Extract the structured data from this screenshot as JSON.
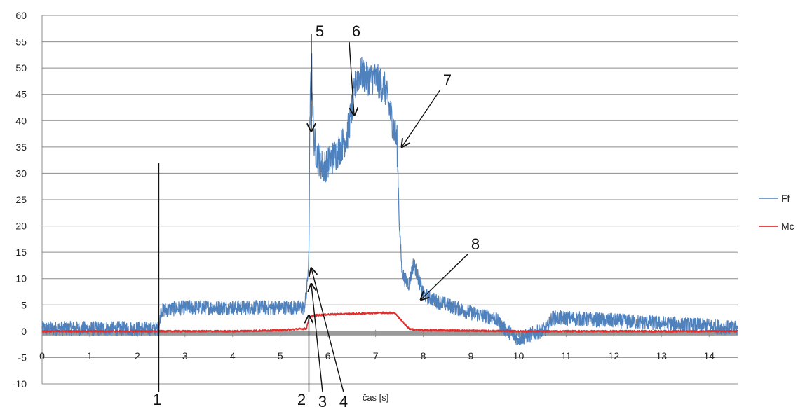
{
  "chart_data": {
    "type": "line",
    "title": "",
    "xlabel": "čas [s]",
    "ylabel": "",
    "xlim": [
      0,
      14.6
    ],
    "ylim": [
      -10,
      60
    ],
    "xticks": [
      0,
      1,
      2,
      3,
      4,
      5,
      6,
      7,
      8,
      9,
      10,
      11,
      12,
      13,
      14
    ],
    "yticks": [
      -10,
      -5,
      0,
      5,
      10,
      15,
      20,
      25,
      30,
      35,
      40,
      45,
      50,
      55,
      60
    ],
    "grid": "horizontal",
    "legend_position": "right",
    "series": [
      {
        "name": "Ff",
        "color": "#4f81bd",
        "x": [
          0,
          0.5,
          1.0,
          1.5,
          2.0,
          2.45,
          2.5,
          3.0,
          3.5,
          4.0,
          4.5,
          5.0,
          5.5,
          5.55,
          5.6,
          5.62,
          5.65,
          5.7,
          5.75,
          5.8,
          5.9,
          6.0,
          6.2,
          6.4,
          6.5,
          6.6,
          6.7,
          6.8,
          7.0,
          7.2,
          7.35,
          7.45,
          7.5,
          7.55,
          7.6,
          7.7,
          7.8,
          7.9,
          8.0,
          8.2,
          8.5,
          9.0,
          9.5,
          9.7,
          10.0,
          10.3,
          10.6,
          10.7,
          11.0,
          12.0,
          13.0,
          14.0,
          14.6
        ],
        "y": [
          0.5,
          0.5,
          0.5,
          0.5,
          0.5,
          0.5,
          4,
          4.5,
          4.5,
          4.5,
          4.5,
          4.5,
          4.5,
          7,
          14,
          38,
          53,
          37,
          34,
          33,
          31,
          32,
          34,
          37,
          42,
          48,
          49,
          48,
          48,
          46,
          40,
          36,
          20,
          12,
          10,
          9,
          13,
          10,
          7,
          6,
          5,
          3.5,
          2.5,
          0.5,
          -1.5,
          -0.5,
          0.5,
          2.5,
          2.5,
          2.0,
          1.5,
          1.0,
          0.5
        ]
      },
      {
        "name": "Mc",
        "color": "#e03030",
        "x": [
          0,
          2.0,
          3.0,
          4.0,
          5.0,
          5.55,
          5.6,
          5.7,
          6.0,
          6.5,
          7.0,
          7.4,
          7.55,
          7.7,
          7.8,
          8.0,
          9.0,
          10.0,
          11.0,
          12.0,
          13.0,
          14.0,
          14.6
        ],
        "y": [
          0,
          0,
          0,
          0,
          0.2,
          0.5,
          2.5,
          3.0,
          3.2,
          3.3,
          3.5,
          3.5,
          2.0,
          0.5,
          0.3,
          0.2,
          0.1,
          0.0,
          0.0,
          0.0,
          0.0,
          0.0,
          0.0
        ]
      }
    ],
    "annotations": [
      {
        "label": "1",
        "x": 2.45,
        "y_top": 32,
        "type": "line"
      },
      {
        "label": "2",
        "x": 5.6,
        "y_to": 3,
        "type": "arrow"
      },
      {
        "label": "3",
        "x": 5.65,
        "y_to": 9,
        "type": "arrow"
      },
      {
        "label": "4",
        "x": 5.65,
        "y_to": 12,
        "type": "arrow"
      },
      {
        "label": "5",
        "x": 5.65,
        "y_to": 38,
        "type": "arrow"
      },
      {
        "label": "6",
        "x": 6.55,
        "y_to": 41,
        "type": "arrow"
      },
      {
        "label": "7",
        "x": 7.55,
        "y_to": 35,
        "type": "arrow"
      },
      {
        "label": "8",
        "x": 7.95,
        "y_to": 6,
        "type": "arrow"
      }
    ]
  }
}
